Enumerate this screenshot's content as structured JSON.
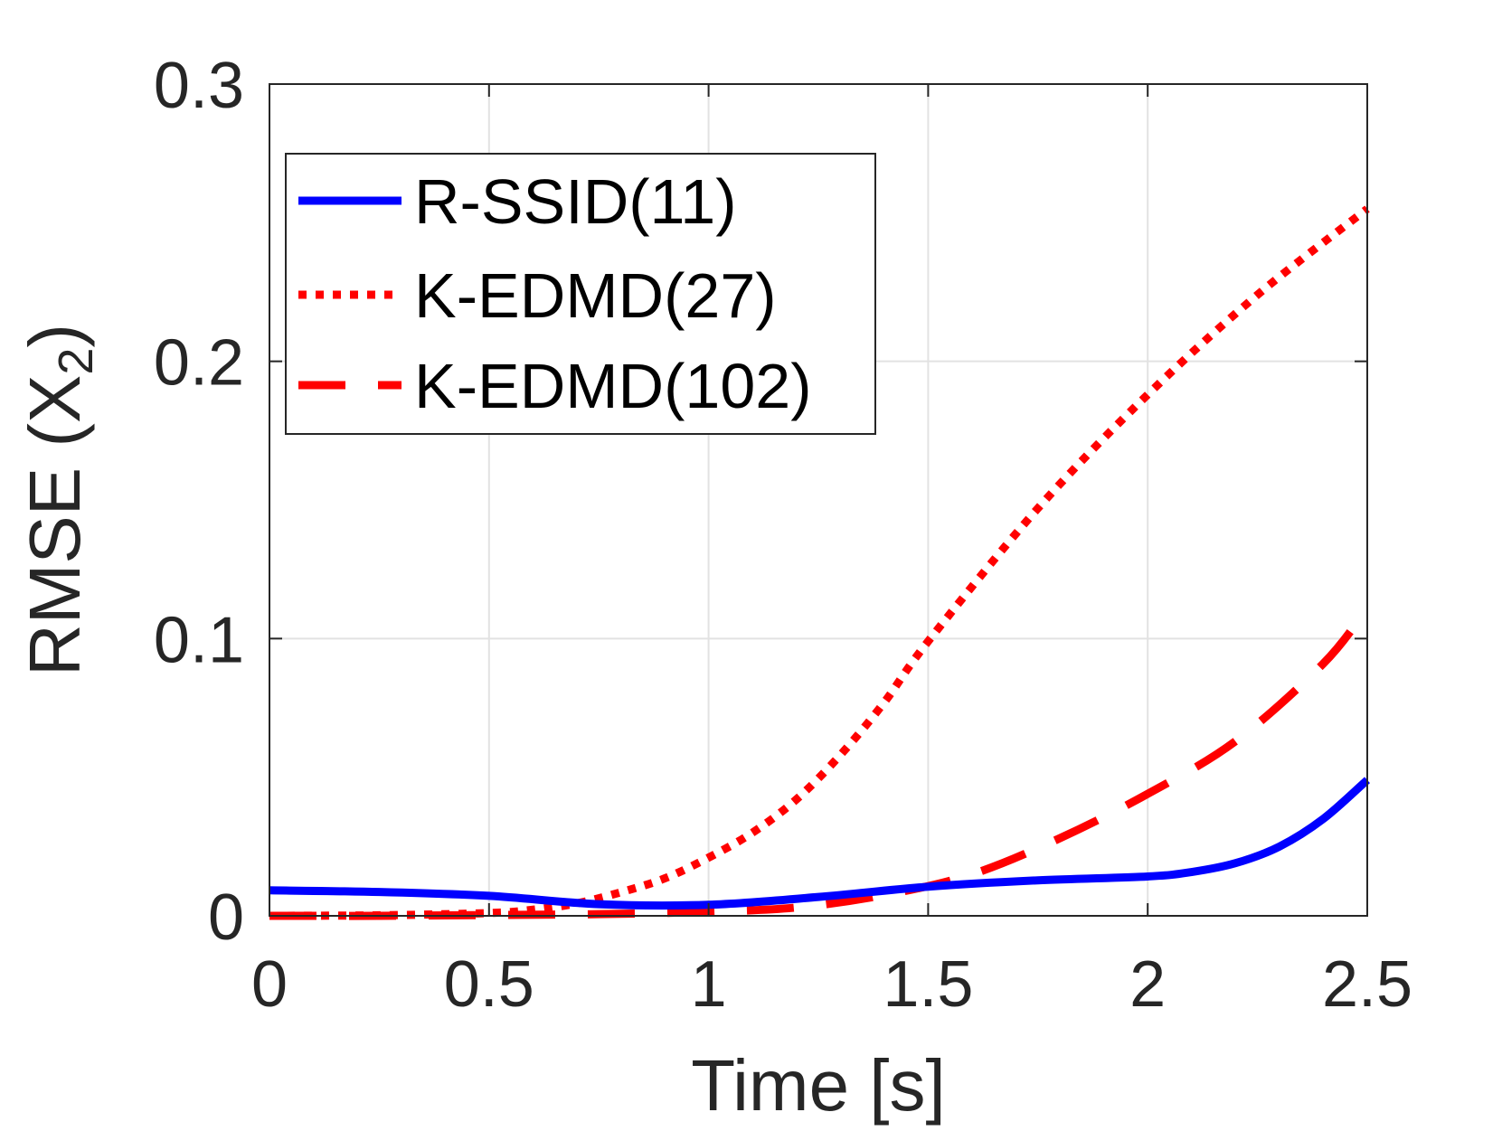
{
  "chart_data": {
    "type": "line",
    "title": "",
    "xlabel": "Time [s]",
    "ylabel": "RMSE (X",
    "ylabel_subscript": "2",
    "ylabel_suffix": ")",
    "xlim": [
      0,
      2.5
    ],
    "ylim": [
      0,
      0.3
    ],
    "grid": true,
    "legend_position": "top-left",
    "xticks": [
      0,
      0.5,
      1,
      1.5,
      2,
      2.5
    ],
    "xtick_labels": [
      "0",
      "0.5",
      "1",
      "1.5",
      "2",
      "2.5"
    ],
    "yticks": [
      0,
      0.1,
      0.2,
      0.3
    ],
    "ytick_labels": [
      "0",
      "0.1",
      "0.2",
      "0.3"
    ],
    "series": [
      {
        "name": "R-SSID(11)",
        "color": "#0000ff",
        "style": "solid",
        "x": [
          0,
          0.25,
          0.5,
          0.75,
          1.0,
          1.25,
          1.5,
          1.75,
          2.0,
          2.1,
          2.2,
          2.3,
          2.4,
          2.5
        ],
        "y": [
          0.0092,
          0.0086,
          0.0072,
          0.0042,
          0.004,
          0.0068,
          0.0105,
          0.0128,
          0.0142,
          0.0158,
          0.019,
          0.025,
          0.035,
          0.049
        ]
      },
      {
        "name": "K-EDMD(27)",
        "color": "#ff0000",
        "style": "dotted",
        "x": [
          0,
          0.25,
          0.5,
          0.6,
          0.7,
          0.8,
          0.9,
          1.0,
          1.1,
          1.2,
          1.3,
          1.4,
          1.5,
          1.75,
          2.0,
          2.25,
          2.5
        ],
        "y": [
          0.0,
          0.0002,
          0.001,
          0.0022,
          0.0045,
          0.0085,
          0.0135,
          0.021,
          0.03,
          0.042,
          0.058,
          0.077,
          0.099,
          0.147,
          0.188,
          0.224,
          0.255
        ]
      },
      {
        "name": "K-EDMD(102)",
        "color": "#ff0000",
        "style": "dashed",
        "x": [
          0,
          0.25,
          0.5,
          0.75,
          1.0,
          1.2,
          1.4,
          1.6,
          1.8,
          2.0,
          2.2,
          2.4,
          2.5
        ],
        "y": [
          0.0,
          0.0,
          0.0003,
          0.0006,
          0.0015,
          0.003,
          0.0075,
          0.015,
          0.028,
          0.044,
          0.063,
          0.091,
          0.111
        ]
      }
    ]
  }
}
